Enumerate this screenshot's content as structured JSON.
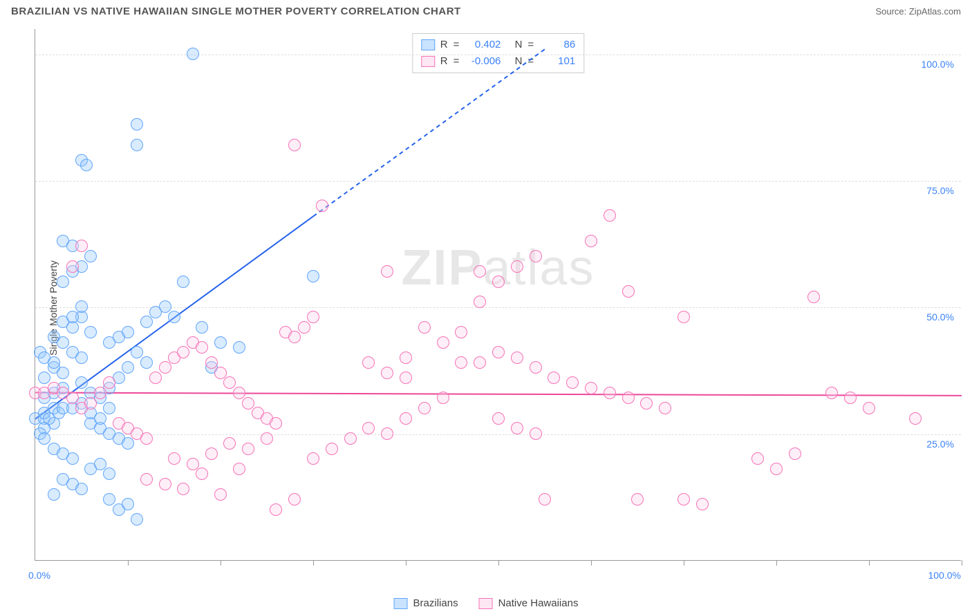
{
  "title": "BRAZILIAN VS NATIVE HAWAIIAN SINGLE MOTHER POVERTY CORRELATION CHART",
  "source": "Source: ZipAtlas.com",
  "ylabel": "Single Mother Poverty",
  "watermark_a": "ZIP",
  "watermark_b": "atlas",
  "chart": {
    "type": "scatter",
    "xlim": [
      0,
      100
    ],
    "ylim": [
      0,
      105
    ],
    "xtick_labels": {
      "min": "0.0%",
      "max": "100.0%"
    },
    "ytick_labels": [
      "25.0%",
      "50.0%",
      "75.0%",
      "100.0%"
    ],
    "ytick_values": [
      25,
      50,
      75,
      100
    ],
    "xtick_positions": [
      10,
      20,
      30,
      40,
      50,
      60,
      70,
      80,
      90,
      100
    ],
    "grid_color": "#dddddd",
    "axis_color": "#999999",
    "tick_label_color": "#3b82f6",
    "background_color": "#ffffff",
    "marker_radius": 9,
    "series": [
      {
        "name": "Brazilians",
        "fill_color": "rgba(147,197,253,0.35)",
        "stroke_color": "#60a5fa",
        "R": "0.402",
        "N": "86",
        "regression": {
          "x1": 0,
          "y1": 28,
          "x2": 30,
          "y2": 68,
          "dash_x2": 55,
          "dash_y2": 101,
          "color": "#2563eb",
          "width": 2
        },
        "points": [
          [
            0,
            28
          ],
          [
            1,
            28
          ],
          [
            1,
            29
          ],
          [
            2,
            30
          ],
          [
            2,
            27
          ],
          [
            1,
            26
          ],
          [
            0.5,
            25
          ],
          [
            1.5,
            28
          ],
          [
            2.5,
            29
          ],
          [
            3,
            30
          ],
          [
            1,
            32
          ],
          [
            2,
            33
          ],
          [
            3,
            34
          ],
          [
            1,
            24
          ],
          [
            2,
            22
          ],
          [
            3,
            21
          ],
          [
            4,
            20
          ],
          [
            1,
            36
          ],
          [
            2,
            38
          ],
          [
            3,
            37
          ],
          [
            4,
            41
          ],
          [
            5,
            40
          ],
          [
            2,
            44
          ],
          [
            3,
            43
          ],
          [
            4,
            46
          ],
          [
            5,
            48
          ],
          [
            6,
            45
          ],
          [
            3,
            16
          ],
          [
            4,
            15
          ],
          [
            5,
            14
          ],
          [
            2,
            13
          ],
          [
            6,
            18
          ],
          [
            7,
            19
          ],
          [
            8,
            17
          ],
          [
            5,
            35
          ],
          [
            6,
            33
          ],
          [
            7,
            32
          ],
          [
            8,
            34
          ],
          [
            9,
            36
          ],
          [
            10,
            38
          ],
          [
            3,
            55
          ],
          [
            4,
            57
          ],
          [
            5,
            58
          ],
          [
            6,
            60
          ],
          [
            5,
            79
          ],
          [
            5.5,
            78
          ],
          [
            11,
            86
          ],
          [
            11,
            82
          ],
          [
            17,
            100
          ],
          [
            12,
            47
          ],
          [
            13,
            49
          ],
          [
            14,
            50
          ],
          [
            15,
            48
          ],
          [
            18,
            46
          ],
          [
            16,
            55
          ],
          [
            20,
            43
          ],
          [
            22,
            42
          ],
          [
            19,
            38
          ],
          [
            3,
            63
          ],
          [
            4,
            62
          ],
          [
            8,
            43
          ],
          [
            9,
            44
          ],
          [
            10,
            45
          ],
          [
            11,
            41
          ],
          [
            12,
            39
          ],
          [
            6,
            27
          ],
          [
            7,
            26
          ],
          [
            8,
            25
          ],
          [
            9,
            24
          ],
          [
            10,
            23
          ],
          [
            4,
            30
          ],
          [
            5,
            31
          ],
          [
            6,
            29
          ],
          [
            7,
            28
          ],
          [
            8,
            30
          ],
          [
            0.5,
            41
          ],
          [
            1,
            40
          ],
          [
            2,
            39
          ],
          [
            30,
            56
          ],
          [
            8,
            12
          ],
          [
            9,
            10
          ],
          [
            10,
            11
          ],
          [
            11,
            8
          ],
          [
            3,
            47
          ],
          [
            4,
            48
          ],
          [
            5,
            50
          ]
        ]
      },
      {
        "name": "Native Hawaiians",
        "fill_color": "rgba(251,207,232,0.35)",
        "stroke_color": "#f472b6",
        "R": "-0.006",
        "N": "101",
        "regression": {
          "x1": 0,
          "y1": 33.2,
          "x2": 100,
          "y2": 32.6,
          "color": "#ec4899",
          "width": 2
        },
        "points": [
          [
            0,
            33
          ],
          [
            1,
            33
          ],
          [
            2,
            34
          ],
          [
            3,
            33
          ],
          [
            4,
            32
          ],
          [
            5,
            30
          ],
          [
            6,
            31
          ],
          [
            7,
            33
          ],
          [
            8,
            35
          ],
          [
            9,
            27
          ],
          [
            10,
            26
          ],
          [
            11,
            25
          ],
          [
            12,
            24
          ],
          [
            13,
            36
          ],
          [
            14,
            38
          ],
          [
            15,
            40
          ],
          [
            16,
            41
          ],
          [
            17,
            43
          ],
          [
            18,
            42
          ],
          [
            19,
            39
          ],
          [
            20,
            37
          ],
          [
            21,
            35
          ],
          [
            22,
            33
          ],
          [
            23,
            31
          ],
          [
            24,
            29
          ],
          [
            25,
            28
          ],
          [
            26,
            27
          ],
          [
            27,
            45
          ],
          [
            28,
            44
          ],
          [
            29,
            46
          ],
          [
            30,
            48
          ],
          [
            31,
            70
          ],
          [
            5,
            62
          ],
          [
            4,
            58
          ],
          [
            12,
            16
          ],
          [
            14,
            15
          ],
          [
            16,
            14
          ],
          [
            18,
            17
          ],
          [
            20,
            13
          ],
          [
            22,
            18
          ],
          [
            28,
            82
          ],
          [
            30,
            20
          ],
          [
            32,
            22
          ],
          [
            34,
            24
          ],
          [
            36,
            26
          ],
          [
            38,
            25
          ],
          [
            40,
            28
          ],
          [
            42,
            30
          ],
          [
            44,
            32
          ],
          [
            46,
            45
          ],
          [
            48,
            39
          ],
          [
            50,
            41
          ],
          [
            52,
            40
          ],
          [
            54,
            38
          ],
          [
            56,
            36
          ],
          [
            58,
            35
          ],
          [
            48,
            57
          ],
          [
            50,
            55
          ],
          [
            52,
            58
          ],
          [
            54,
            60
          ],
          [
            60,
            34
          ],
          [
            62,
            33
          ],
          [
            64,
            32
          ],
          [
            66,
            31
          ],
          [
            68,
            30
          ],
          [
            70,
            48
          ],
          [
            62,
            68
          ],
          [
            64,
            53
          ],
          [
            38,
            57
          ],
          [
            40,
            40
          ],
          [
            26,
            10
          ],
          [
            28,
            12
          ],
          [
            78,
            20
          ],
          [
            80,
            18
          ],
          [
            82,
            21
          ],
          [
            84,
            52
          ],
          [
            60,
            63
          ],
          [
            86,
            33
          ],
          [
            88,
            32
          ],
          [
            90,
            30
          ],
          [
            70,
            12
          ],
          [
            72,
            11
          ],
          [
            95,
            28
          ],
          [
            42,
            46
          ],
          [
            44,
            43
          ],
          [
            46,
            39
          ],
          [
            48,
            51
          ],
          [
            50,
            28
          ],
          [
            52,
            26
          ],
          [
            54,
            25
          ],
          [
            36,
            39
          ],
          [
            38,
            37
          ],
          [
            40,
            36
          ],
          [
            15,
            20
          ],
          [
            17,
            19
          ],
          [
            19,
            21
          ],
          [
            21,
            23
          ],
          [
            23,
            22
          ],
          [
            25,
            24
          ],
          [
            55,
            12
          ],
          [
            65,
            12
          ]
        ]
      }
    ]
  },
  "legend": {
    "r_label": "R",
    "n_label": "N",
    "equals": "="
  }
}
